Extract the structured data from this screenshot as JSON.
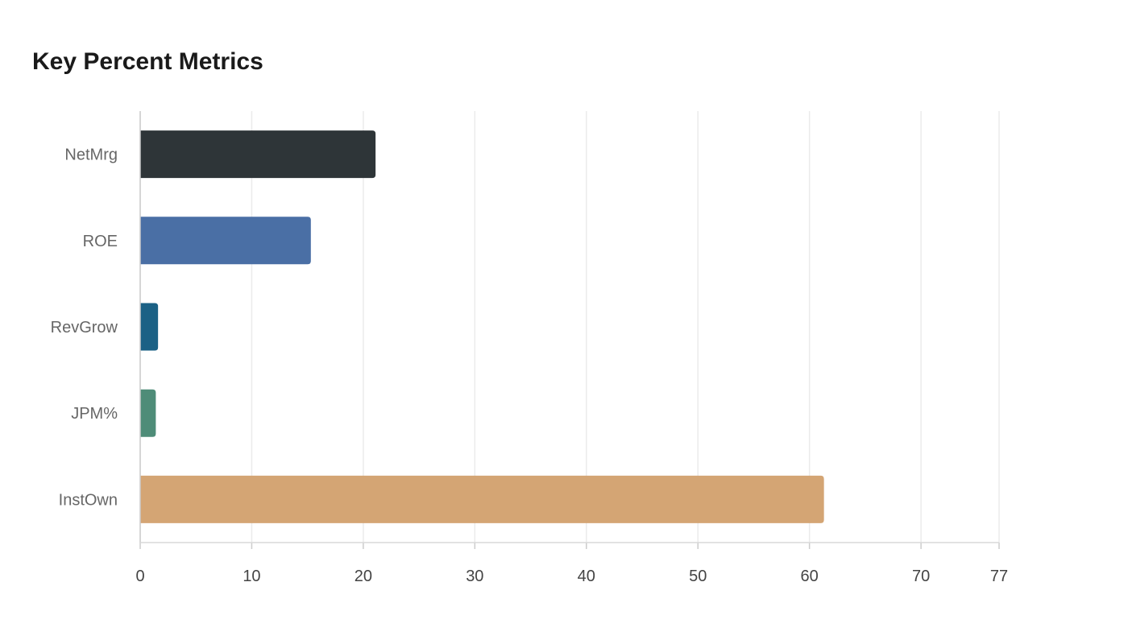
{
  "chart_data": {
    "type": "bar",
    "orientation": "horizontal",
    "title": "Key Percent Metrics",
    "xlabel": "",
    "ylabel": "",
    "categories": [
      "NetMrg",
      "ROE",
      "RevGrow",
      "JPM%",
      "InstOwn"
    ],
    "values": [
      21.1,
      15.3,
      1.6,
      1.4,
      61.3
    ],
    "colors": [
      "#2e3538",
      "#4a6fa5",
      "#1b6185",
      "#4e8c78",
      "#d4a574"
    ],
    "xlim": [
      0,
      77
    ],
    "xticks": [
      "0",
      "10",
      "20",
      "30",
      "40",
      "50",
      "60",
      "70",
      "77"
    ],
    "grid": true,
    "legend": "none"
  }
}
